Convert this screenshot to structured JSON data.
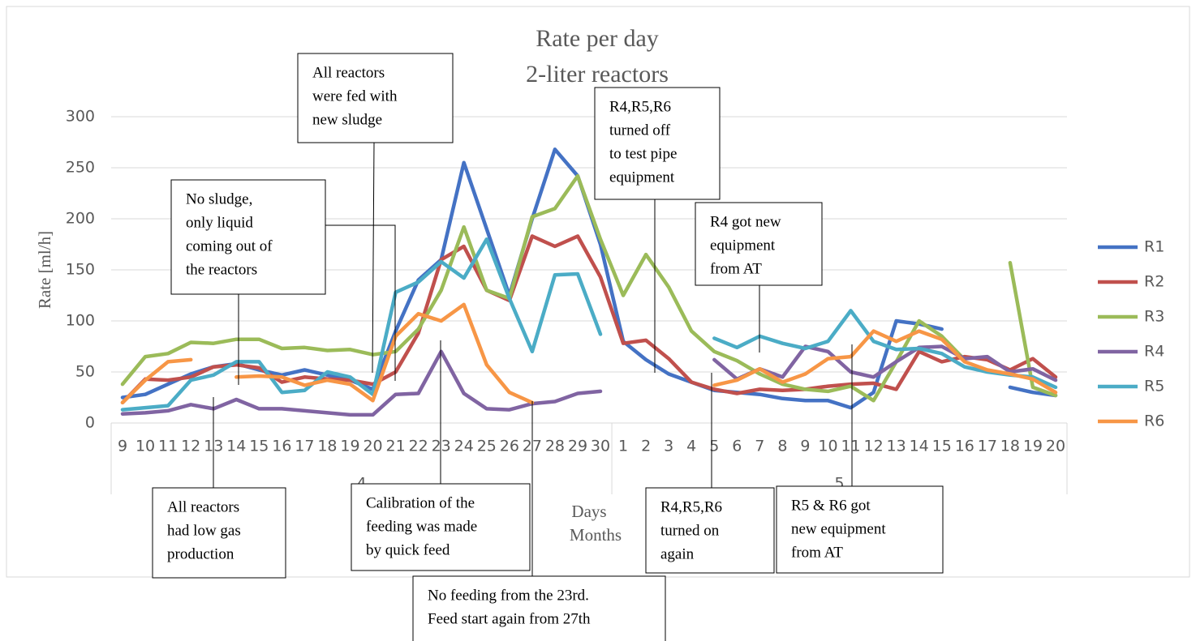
{
  "chart_data": {
    "type": "line",
    "title": "Rate per day",
    "subtitle": "2-liter reactors",
    "y_label": "Rate [ml/h]",
    "x_label": "Days",
    "x_group_label": "Months",
    "categories": [
      "9",
      "10",
      "11",
      "12",
      "13",
      "14",
      "15",
      "16",
      "17",
      "18",
      "19",
      "20",
      "21",
      "22",
      "23",
      "24",
      "25",
      "26",
      "27",
      "28",
      "29",
      "30",
      "1",
      "2",
      "3",
      "4",
      "5",
      "6",
      "7",
      "8",
      "9",
      "10",
      "11",
      "12",
      "13",
      "14",
      "15",
      "16",
      "17",
      "18",
      "19",
      "20"
    ],
    "groups": [
      {
        "label": "4",
        "start": 0,
        "end": 21
      },
      {
        "label": "5",
        "start": 22,
        "end": 41
      }
    ],
    "ylim": [
      0,
      300
    ],
    "yticks": [
      0,
      50,
      100,
      150,
      200,
      250,
      300
    ],
    "grid": true,
    "legend": "right",
    "series": [
      {
        "name": "R1",
        "color": "#4472c4",
        "values": [
          25,
          28,
          38,
          48,
          55,
          58,
          52,
          47,
          52,
          47,
          42,
          33,
          90,
          140,
          160,
          255,
          190,
          125,
          200,
          268,
          242,
          175,
          80,
          62,
          48,
          40,
          32,
          30,
          28,
          24,
          22,
          22,
          15,
          30,
          100,
          97,
          92,
          null,
          null,
          35,
          30,
          27
        ]
      },
      {
        "name": "R2",
        "color": "#c0504d",
        "values": [
          20,
          43,
          42,
          45,
          55,
          57,
          54,
          40,
          45,
          43,
          42,
          38,
          50,
          88,
          160,
          173,
          130,
          120,
          183,
          173,
          183,
          143,
          78,
          81,
          63,
          40,
          33,
          29,
          33,
          32,
          33,
          36,
          38,
          39,
          33,
          70,
          60,
          65,
          62,
          52,
          63,
          45
        ]
      },
      {
        "name": "R3",
        "color": "#9bbb59",
        "values": [
          38,
          65,
          68,
          79,
          78,
          82,
          82,
          73,
          74,
          71,
          72,
          67,
          70,
          92,
          130,
          192,
          130,
          122,
          202,
          210,
          242,
          180,
          125,
          165,
          133,
          90,
          70,
          61,
          48,
          38,
          33,
          31,
          36,
          22,
          60,
          100,
          85,
          62,
          null,
          157,
          35,
          27
        ]
      },
      {
        "name": "R4",
        "color": "#8064a2",
        "values": [
          9,
          10,
          12,
          18,
          14,
          23,
          14,
          14,
          12,
          10,
          8,
          8,
          28,
          29,
          70,
          29,
          14,
          13,
          19,
          21,
          29,
          31,
          null,
          null,
          null,
          null,
          62,
          43,
          53,
          45,
          75,
          70,
          50,
          45,
          60,
          74,
          75,
          63,
          65,
          50,
          53,
          42
        ]
      },
      {
        "name": "R5",
        "color": "#4bacc6",
        "values": [
          13,
          15,
          17,
          42,
          47,
          60,
          60,
          30,
          32,
          50,
          45,
          28,
          128,
          138,
          158,
          142,
          180,
          122,
          70,
          145,
          146,
          87,
          null,
          null,
          null,
          null,
          83,
          74,
          85,
          78,
          73,
          80,
          110,
          80,
          72,
          73,
          68,
          55,
          50,
          47,
          45,
          35
        ]
      },
      {
        "name": "R6",
        "color": "#f79646",
        "values": [
          20,
          42,
          60,
          62,
          null,
          45,
          46,
          45,
          37,
          42,
          38,
          22,
          85,
          107,
          100,
          116,
          57,
          30,
          20,
          null,
          null,
          null,
          null,
          null,
          null,
          null,
          37,
          42,
          53,
          40,
          48,
          63,
          65,
          90,
          80,
          90,
          82,
          60,
          52,
          48,
          43,
          30
        ]
      }
    ],
    "annotations": [
      {
        "lines": [
          "No sludge,",
          "only liquid",
          "coming out of",
          "the reactors"
        ]
      },
      {
        "lines": [
          "All reactors",
          "were fed with",
          "new sludge"
        ]
      },
      {
        "lines": [
          "R4,R5,R6",
          "turned off",
          "to test pipe",
          "equipment"
        ]
      },
      {
        "lines": [
          "R4 got new",
          "equipment",
          "from AT"
        ]
      },
      {
        "lines": [
          "All reactors",
          "had low  gas",
          "production"
        ]
      },
      {
        "lines": [
          "Calibration of the",
          "feeding was made",
          "by quick feed"
        ]
      },
      {
        "lines": [
          "No feeding from the 23rd.",
          "Feed start again from 27th"
        ]
      },
      {
        "lines": [
          "R4,R5,R6",
          "turned on",
          "again"
        ]
      },
      {
        "lines": [
          "R5 & R6 got",
          "new equipment",
          "from AT"
        ]
      }
    ]
  }
}
